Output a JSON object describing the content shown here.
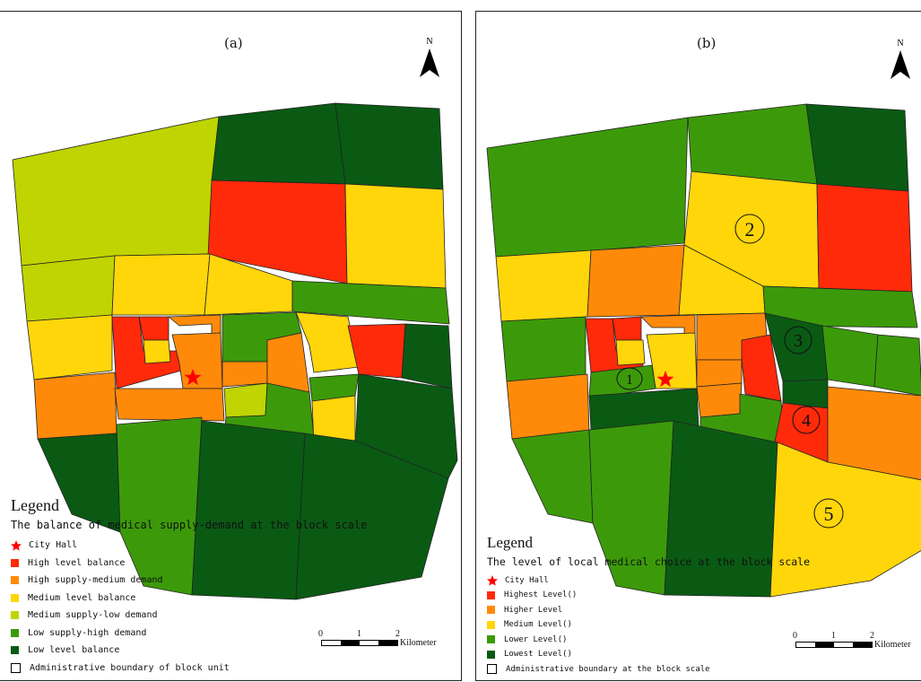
{
  "colors": {
    "red": "#ff2a0a",
    "orange": "#ff8a0a",
    "yellow": "#ffd60a",
    "yellowgreen": "#bfd400",
    "green": "#3c9a0a",
    "darkgreen": "#0a5a14",
    "white": "#ffffff"
  },
  "panel_a": {
    "label": "(a)",
    "north": "N",
    "legend_title": "Legend",
    "legend_subtitle": "The balance of medical supply-demand at the block scale",
    "legend_items": [
      {
        "label": "City Hall",
        "symbol": "star",
        "color": "#ff0000"
      },
      {
        "label": "High level balance",
        "symbol": "square",
        "color": "#ff2a0a"
      },
      {
        "label": "High supply-medium demand",
        "symbol": "square",
        "color": "#ff8a0a"
      },
      {
        "label": "Medium level balance",
        "symbol": "square",
        "color": "#ffd60a"
      },
      {
        "label": "Medium supply-low demand",
        "symbol": "square",
        "color": "#bfd400"
      },
      {
        "label": "Low supply-high demand",
        "symbol": "square",
        "color": "#3c9a0a"
      },
      {
        "label": "Low level balance",
        "symbol": "square",
        "color": "#0a5a14"
      },
      {
        "label": "Administrative boundary of block unit",
        "symbol": "outline",
        "color": "#ffffff"
      }
    ],
    "scale_ticks": [
      "0",
      "1",
      "2"
    ],
    "scale_unit": "Kilometer"
  },
  "panel_b": {
    "label": "(b)",
    "north": "N",
    "legend_title": "Legend",
    "legend_subtitle": "The level of local medical choice at the block scale",
    "legend_items": [
      {
        "label": "City Hall",
        "symbol": "star",
        "color": "#ff0000"
      },
      {
        "label": "Highest Level()",
        "symbol": "square",
        "color": "#ff2a0a"
      },
      {
        "label": "Higher Level",
        "symbol": "square",
        "color": "#ff8a0a"
      },
      {
        "label": "Medium Level()",
        "symbol": "square",
        "color": "#ffd60a"
      },
      {
        "label": "Lower Level()",
        "symbol": "square",
        "color": "#3c9a0a"
      },
      {
        "label": "Lowest Level()",
        "symbol": "square",
        "color": "#0a5a14"
      },
      {
        "label": "Administrative boundary at the block scale",
        "symbol": "outline",
        "color": "#ffffff"
      }
    ],
    "region_labels": [
      "1",
      "2",
      "3",
      "4",
      "5"
    ],
    "scale_ticks": [
      "0",
      "1",
      "2"
    ],
    "scale_unit": "Kilometer"
  }
}
